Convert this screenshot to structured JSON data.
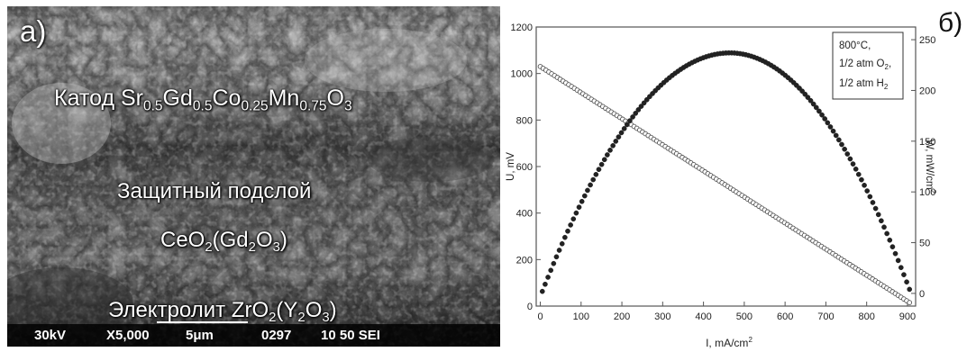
{
  "panel_a": {
    "letter": "а)",
    "cathode_prefix": "Катод Sr",
    "cathode_sub1": "0.5",
    "cathode_gd": "Gd",
    "cathode_sub2": "0.5",
    "cathode_co": "Co",
    "cathode_sub3": "0.25",
    "cathode_mn": "Mn",
    "cathode_sub4": "0.75",
    "cathode_o": "O",
    "cathode_sub5": "3",
    "sublayer": "Защитный подслой",
    "ceo_1": "CeO",
    "ceo_sub1": "2",
    "ceo_2": "(Gd",
    "ceo_sub2": "2",
    "ceo_3": "O",
    "ceo_sub3": "3",
    "ceo_4": ")",
    "electrolyte_1": "Электролит ZrO",
    "electrolyte_sub1": "2",
    "electrolyte_2": "(Y",
    "electrolyte_sub2": "2",
    "electrolyte_3": "O",
    "electrolyte_sub3": "3",
    "electrolyte_4": ")",
    "databar": {
      "voltage": "30kV",
      "magnification": "X5,000",
      "scale": "5μm",
      "image_no": "0297",
      "wd": "10 50 SEI"
    }
  },
  "panel_b": {
    "letter": "б)",
    "chart_data": {
      "type": "scatter",
      "xlabel": "I, mA/cm",
      "xlabel_sup": "2",
      "ylabel_left": "U, mV",
      "ylabel_right": "W, mW/cm",
      "ylabel_right_sup": "2",
      "xlim": [
        -10,
        920
      ],
      "ylim_left": [
        0,
        1200
      ],
      "ylim_right": [
        -12.5,
        262.5
      ],
      "x_ticks": [
        0,
        100,
        200,
        300,
        400,
        500,
        600,
        700,
        800,
        900
      ],
      "y_left_ticks": [
        0,
        200,
        400,
        600,
        800,
        1000,
        1200
      ],
      "y_right_ticks": [
        0,
        50,
        100,
        150,
        200,
        250
      ],
      "legend_lines": [
        "800°C,",
        "1/2 atm O",
        "1/2 atm H"
      ],
      "legend_subs": [
        "",
        "2",
        "2"
      ],
      "legend_suffix": [
        "",
        ",",
        ""
      ],
      "series": [
        {
          "marker": "open-circle",
          "axis": "left",
          "x_range": [
            0,
            905
          ],
          "y_at_x_start": 1030,
          "y_at_x_end": 15
        },
        {
          "marker": "filled-circle",
          "axis": "right",
          "x_range": [
            5,
            905
          ],
          "peak_x": 465,
          "peak_y": 237,
          "y_at_x_start": 2,
          "y_at_x_end": 4
        }
      ]
    }
  }
}
